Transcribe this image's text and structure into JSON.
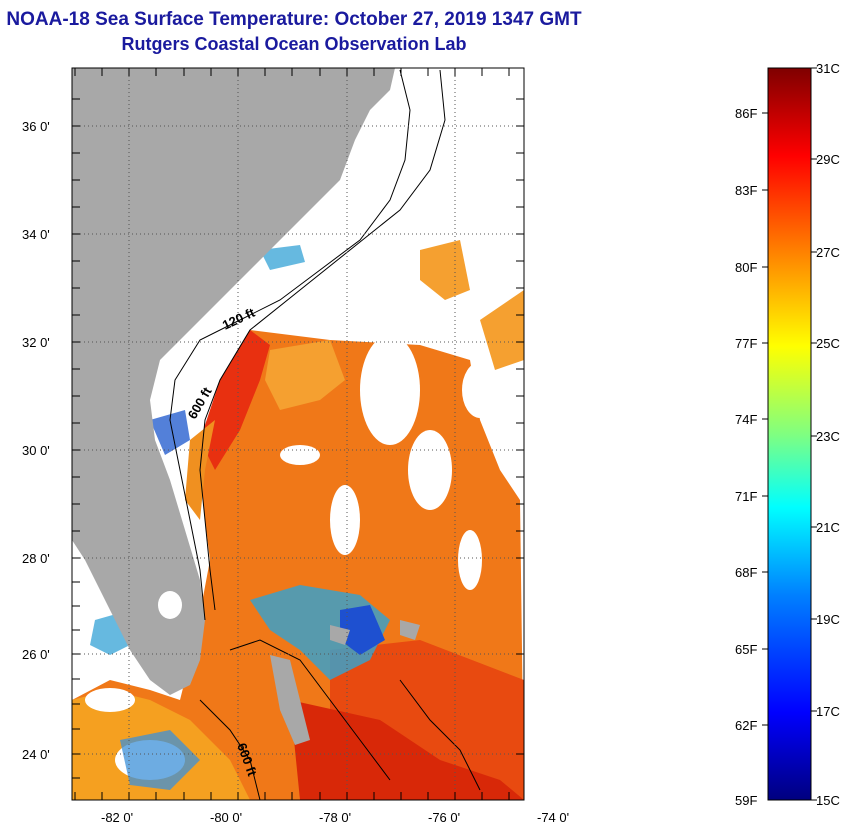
{
  "header": {
    "title_line1": "NOAA-18 Sea Surface Temperature:  October 27, 2019 1347 GMT",
    "title_line2": "Rutgers Coastal Ocean Observation Lab"
  },
  "map": {
    "lat_labels": [
      "36 0'",
      "34 0'",
      "32 0'",
      "30 0'",
      "28 0'",
      "26 0'",
      "24 0'"
    ],
    "lon_labels": [
      "-82 0'",
      "-80 0'",
      "-78 0'",
      "-76 0'",
      "-74 0'"
    ],
    "contour_labels": [
      "120 ft",
      "600 ft",
      "600 ft"
    ],
    "colors": {
      "land": "#a8a8a8",
      "cloud": "#ffffff",
      "warm": "#f07818",
      "hot": "#e83010",
      "cool": "#1e64e0"
    }
  },
  "colorbar": {
    "fahrenheit_labels": [
      "86F",
      "83F",
      "80F",
      "77F",
      "74F",
      "71F",
      "68F",
      "65F",
      "62F",
      "59F"
    ],
    "celsius_labels": [
      "31C",
      "29C",
      "27C",
      "25C",
      "23C",
      "21C",
      "19C",
      "17C",
      "15C"
    ],
    "scale_colors": [
      "#00007f",
      "#0000ff",
      "#0080ff",
      "#00ffff",
      "#80ff80",
      "#ffff00",
      "#ff8000",
      "#ff0000",
      "#7f0000"
    ]
  }
}
